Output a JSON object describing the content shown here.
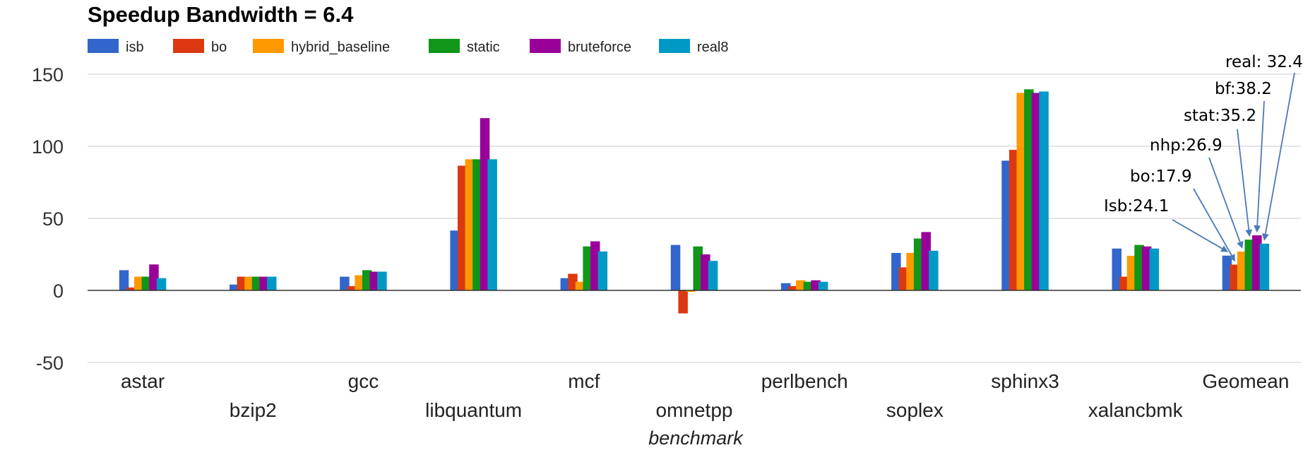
{
  "chart_data": {
    "type": "bar",
    "title": "Speedup Bandwidth = 6.4",
    "xlabel": "benchmark",
    "ylabel": "",
    "ylim": [
      -50,
      150
    ],
    "yticks": [
      150,
      100,
      50,
      0,
      -50
    ],
    "grid": true,
    "legend_position": "top-left",
    "categories": [
      "astar",
      "bzip2",
      "gcc",
      "libquantum",
      "mcf",
      "omnetpp",
      "perlbench",
      "soplex",
      "sphinx3",
      "xalancbmk",
      "Geomean"
    ],
    "series": [
      {
        "name": "isb",
        "color": "#3366cc",
        "values": [
          14,
          4,
          9.5,
          41.5,
          8.5,
          31.5,
          5,
          26,
          90,
          29,
          24.1
        ]
      },
      {
        "name": "bo",
        "color": "#dc3912",
        "values": [
          2,
          9.5,
          3,
          86.5,
          11.5,
          -16,
          3,
          16,
          97.5,
          9.5,
          17.9
        ]
      },
      {
        "name": "hybrid_baseline",
        "color": "#ff9900",
        "values": [
          9.5,
          9.5,
          10.5,
          91,
          6,
          -1,
          7,
          26,
          137,
          24,
          26.9
        ]
      },
      {
        "name": "static",
        "color": "#109618",
        "values": [
          9.5,
          9.5,
          14,
          91,
          30.5,
          30.5,
          6,
          36,
          139.5,
          31.5,
          35.2
        ]
      },
      {
        "name": "bruteforce",
        "color": "#990099",
        "values": [
          18,
          9.5,
          13,
          119.5,
          34,
          25,
          7,
          40.5,
          137,
          30.5,
          38.2
        ]
      },
      {
        "name": "real8",
        "color": "#0099c6",
        "values": [
          8.5,
          9.5,
          13,
          91,
          27,
          20.5,
          6,
          27.5,
          138,
          29,
          32.4
        ]
      }
    ],
    "annotations": [
      {
        "text": "Isb:24.1",
        "category": "Geomean",
        "series": "isb"
      },
      {
        "text": "bo:17.9",
        "category": "Geomean",
        "series": "bo"
      },
      {
        "text": "nhp:26.9",
        "category": "Geomean",
        "series": "hybrid_baseline"
      },
      {
        "text": "stat:35.2",
        "category": "Geomean",
        "series": "static"
      },
      {
        "text": "bf:38.2",
        "category": "Geomean",
        "series": "bruteforce"
      },
      {
        "text": "real: 32.4",
        "category": "Geomean",
        "series": "real8"
      }
    ]
  }
}
